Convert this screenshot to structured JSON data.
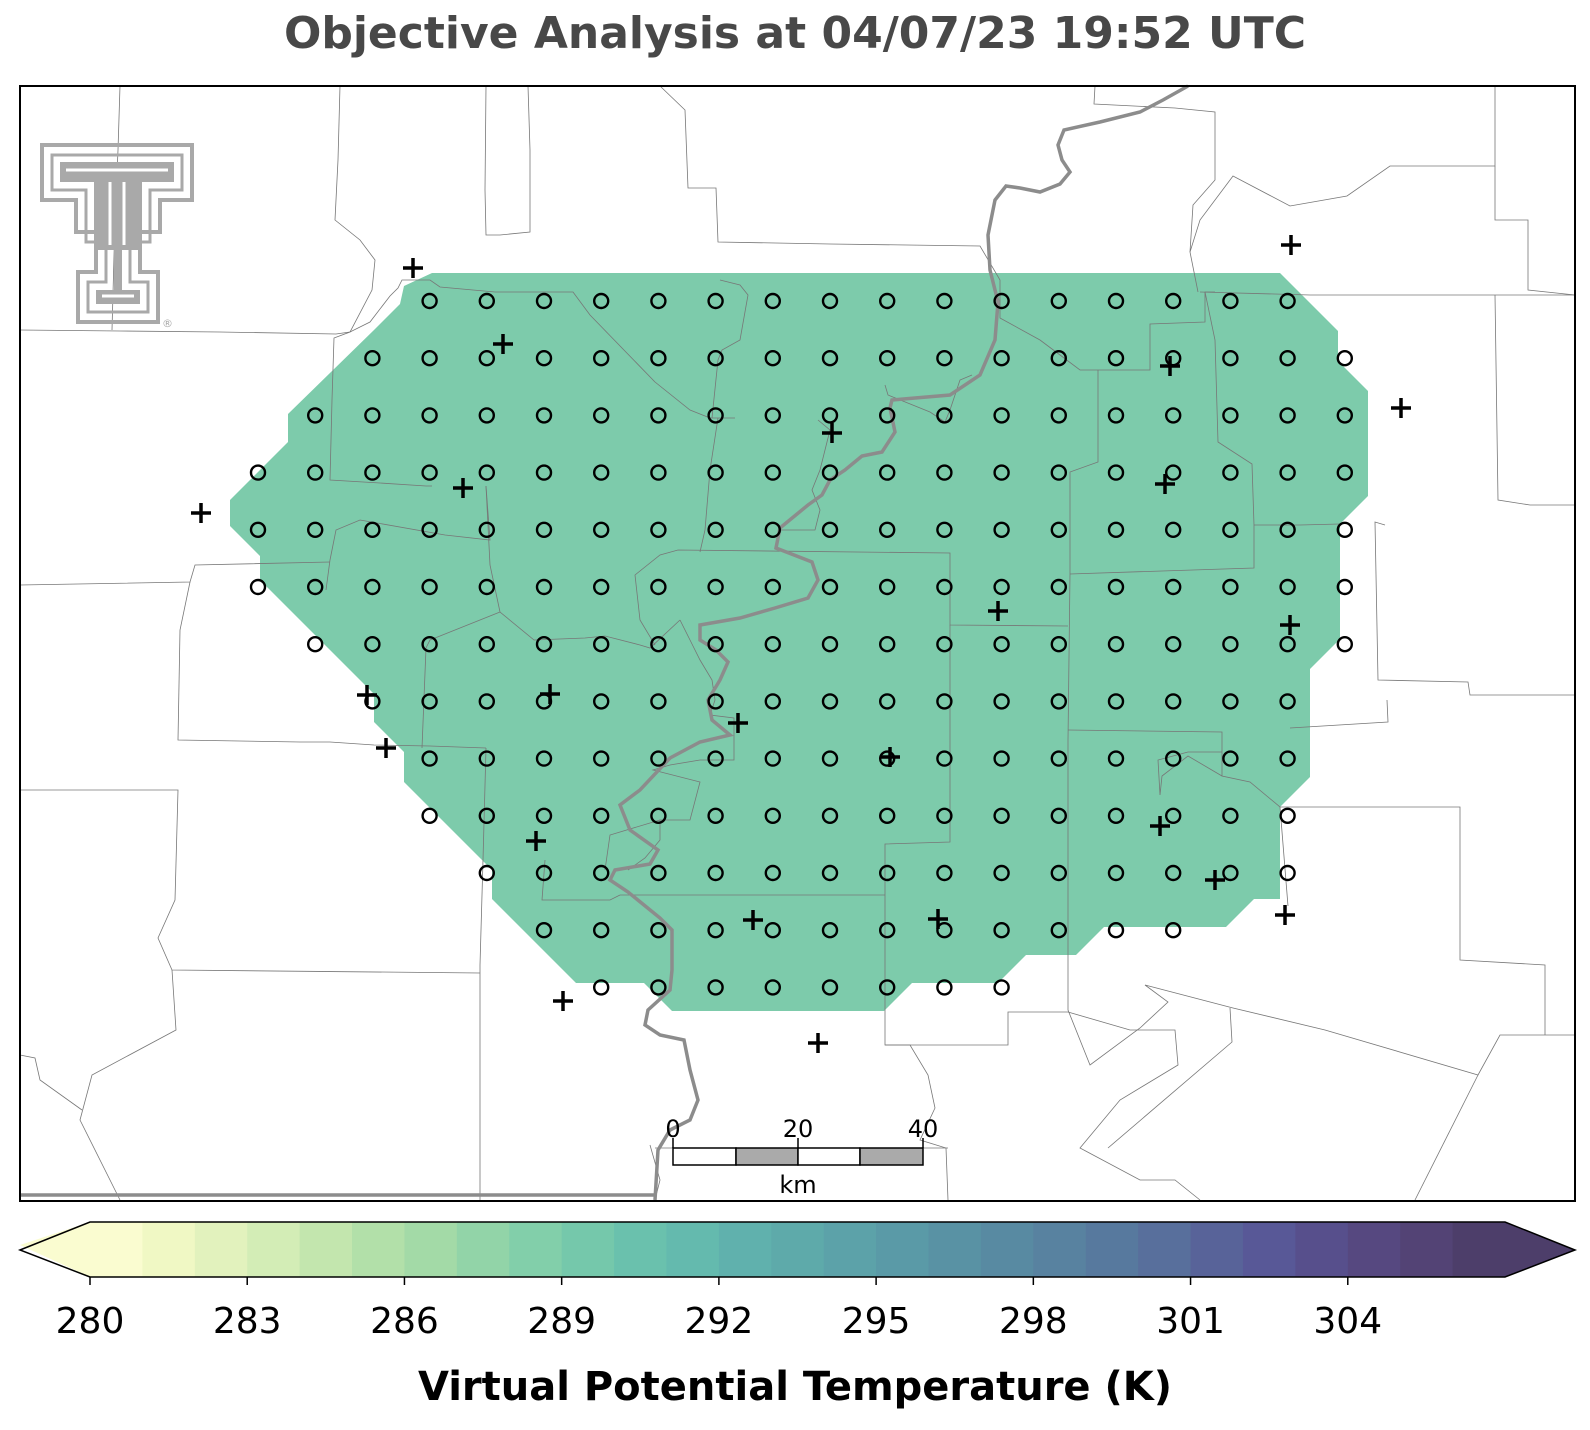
{
  "title": "Objective Analysis at 04/07/23 19:52 UTC",
  "colorbar": {
    "label": "Virtual Potential Temperature (K)",
    "min": 280,
    "max": 307,
    "step": 1,
    "ticks": [
      280,
      283,
      286,
      289,
      292,
      295,
      298,
      301,
      304
    ],
    "colors": [
      "#fafcd0",
      "#f0f8c4",
      "#e2f2bd",
      "#d3edb6",
      "#c3e6ae",
      "#b2e0a9",
      "#a3daa7",
      "#92d4a8",
      "#82cfaa",
      "#75c8ab",
      "#6ac1ad",
      "#64baae",
      "#60b1ad",
      "#5eaaaa",
      "#5ca2a9",
      "#5a9aa7",
      "#5992a4",
      "#588aa2",
      "#5882a0",
      "#57799e",
      "#586f9c",
      "#586399",
      "#585897",
      "#574f8c",
      "#564880",
      "#534375",
      "#4d3e6a"
    ],
    "extend": "both"
  },
  "analysis": {
    "fill_color": "#7dcbab",
    "grid_marker": "circle",
    "station_marker": "plus"
  },
  "scale_bar": {
    "labels": [
      "0",
      "20",
      "40"
    ],
    "unit": "km"
  },
  "logo": {
    "name": "Texas Tech Double T",
    "mark": "®",
    "color": "#a9a9a9"
  }
}
